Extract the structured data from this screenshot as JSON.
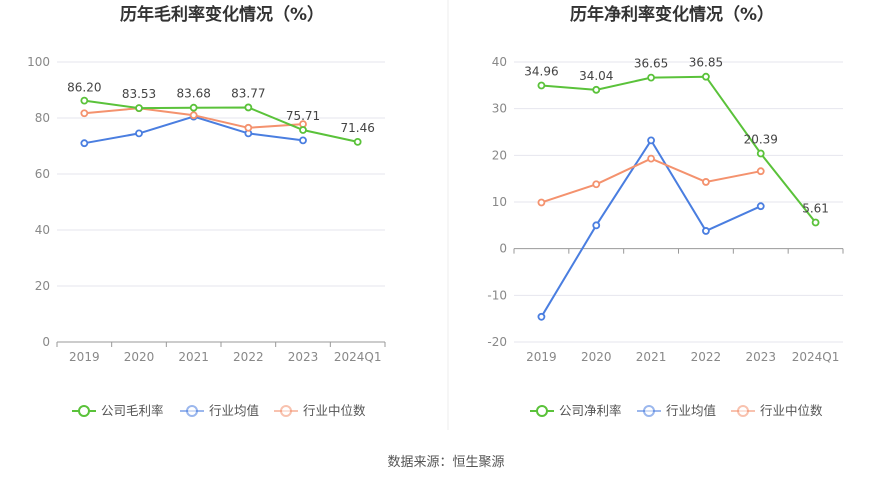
{
  "source_text": "数据来源：恒生聚源",
  "colors": {
    "company": "#5ac23a",
    "industry_avg": "#4a7ee0",
    "industry_median": "#f4926e",
    "grid": "#e6e6ee",
    "axis": "#999999"
  },
  "chart_data": [
    {
      "type": "line",
      "title": "历年毛利率变化情况（%）",
      "categories": [
        "2019",
        "2020",
        "2021",
        "2022",
        "2023",
        "2024Q1"
      ],
      "ylim": [
        0,
        100
      ],
      "yticks": [
        0,
        20,
        40,
        60,
        80,
        100
      ],
      "grid": true,
      "legend_position": "bottom",
      "series": [
        {
          "name": "公司毛利率",
          "color_key": "company",
          "values": [
            86.2,
            83.53,
            83.68,
            83.77,
            75.71,
            71.46
          ],
          "labels": [
            "86.20",
            "83.53",
            "83.68",
            "83.77",
            "75.71",
            "71.46"
          ]
        },
        {
          "name": "行业均值",
          "color_key": "industry_avg",
          "values": [
            71.0,
            74.5,
            80.5,
            74.5,
            72.0,
            null
          ]
        },
        {
          "name": "行业中位数",
          "color_key": "industry_median",
          "values": [
            81.7,
            83.5,
            81.0,
            76.5,
            77.8,
            null
          ]
        }
      ]
    },
    {
      "type": "line",
      "title": "历年净利率变化情况（%）",
      "categories": [
        "2019",
        "2020",
        "2021",
        "2022",
        "2023",
        "2024Q1"
      ],
      "ylim": [
        -20,
        40
      ],
      "yticks": [
        -20,
        -10,
        0,
        10,
        20,
        30,
        40
      ],
      "grid": true,
      "legend_position": "bottom",
      "series": [
        {
          "name": "公司净利率",
          "color_key": "company",
          "values": [
            34.96,
            34.04,
            36.65,
            36.85,
            20.39,
            5.61
          ],
          "labels": [
            "34.96",
            "34.04",
            "36.65",
            "36.85",
            "20.39",
            "5.61"
          ]
        },
        {
          "name": "行业均值",
          "color_key": "industry_avg",
          "values": [
            -14.6,
            5.0,
            23.2,
            3.8,
            9.1,
            null
          ]
        },
        {
          "name": "行业中位数",
          "color_key": "industry_median",
          "values": [
            9.9,
            13.8,
            19.3,
            14.3,
            16.6,
            null
          ]
        }
      ]
    }
  ]
}
